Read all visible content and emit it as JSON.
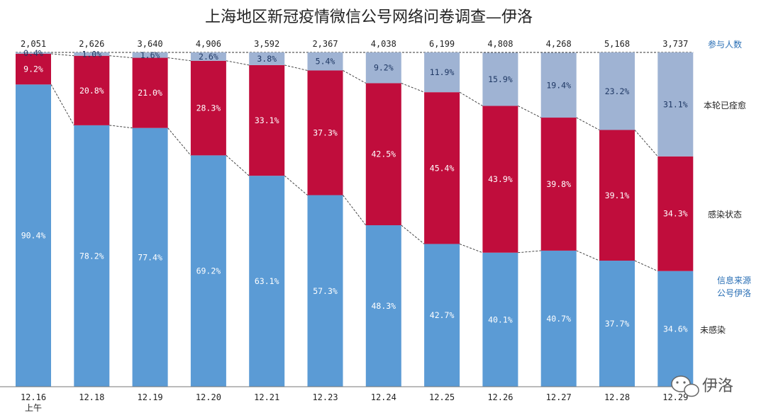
{
  "chart_data": {
    "type": "bar",
    "stacked": true,
    "normalized": true,
    "title": "上海地区新冠疫情微信公号网络问卷调查—伊洛",
    "categories": [
      "12.16",
      "12.18",
      "12.19",
      "12.20",
      "12.21",
      "12.23",
      "12.24",
      "12.25",
      "12.26",
      "12.27",
      "12.28",
      "12.29"
    ],
    "category_sublabels": [
      "上午",
      "",
      "",
      "",
      "",
      "",
      "",
      "",
      "",
      "",
      "",
      ""
    ],
    "participants_label": "参与人数",
    "participants": [
      "2,051",
      "2,626",
      "3,640",
      "4,906",
      "3,592",
      "2,367",
      "4,038",
      "6,199",
      "4,808",
      "4,268",
      "5,168",
      "3,737"
    ],
    "series": [
      {
        "name": "未感染",
        "color": "#5b9bd5",
        "label_color": "#ffffff",
        "values": [
          90.4,
          78.2,
          77.4,
          69.2,
          63.1,
          57.3,
          48.3,
          42.7,
          40.1,
          40.7,
          37.7,
          34.6
        ],
        "labels": [
          "90.4%",
          "78.2%",
          "77.4%",
          "69.2%",
          "63.1%",
          "57.3%",
          "48.3%",
          "42.7%",
          "40.1%",
          "40.7%",
          "37.7%",
          "34.6%"
        ]
      },
      {
        "name": "感染状态",
        "color": "#c00d3c",
        "label_color": "#ffffff",
        "values": [
          9.2,
          20.8,
          21.0,
          28.3,
          33.1,
          37.3,
          42.5,
          45.4,
          43.9,
          39.8,
          39.1,
          34.3
        ],
        "labels": [
          "9.2%",
          "20.8%",
          "21.0%",
          "28.3%",
          "33.1%",
          "37.3%",
          "42.5%",
          "45.4%",
          "43.9%",
          "39.8%",
          "39.1%",
          "34.3%"
        ]
      },
      {
        "name": "本轮已痊愈",
        "color": "#9fb3d3",
        "label_color": "#1f3864",
        "values": [
          0.4,
          1.0,
          1.6,
          2.6,
          3.8,
          5.4,
          9.2,
          11.9,
          15.9,
          19.4,
          23.2,
          31.1
        ],
        "labels": [
          "0.4%",
          "1.0%",
          "1.6%",
          "2.6%",
          "3.8%",
          "5.4%",
          "9.2%",
          "11.9%",
          "15.9%",
          "19.4%",
          "23.2%",
          "31.1%"
        ]
      }
    ],
    "ylim": [
      0,
      100
    ],
    "grid": false,
    "legend_position": "right",
    "connector_lines": "dashed"
  },
  "source_note": [
    "信息来源",
    "公号伊洛"
  ],
  "watermark": "伊洛",
  "colors": {
    "label_right": "#222222",
    "note": "#2a6fb5"
  }
}
